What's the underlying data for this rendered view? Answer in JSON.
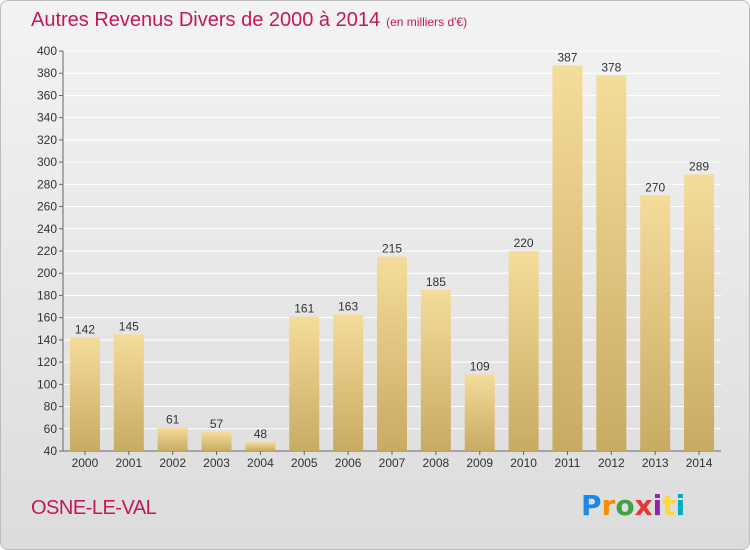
{
  "header": {
    "title": "Autres Revenus Divers de 2000 à 2014",
    "unit": "(en milliers d'€)"
  },
  "footer": {
    "commune": "OSNE-LE-VAL",
    "logo_letters": [
      "P",
      "r",
      "o",
      "x",
      "i",
      "t",
      "i"
    ],
    "logo_colors": [
      "#1e88e5",
      "#fb8c00",
      "#43a047",
      "#e53935",
      "#8e24aa",
      "#fdd835",
      "#00acc1"
    ]
  },
  "chart_data": {
    "type": "bar",
    "title": "Autres Revenus Divers de 2000 à 2014",
    "categories": [
      "2000",
      "2001",
      "2002",
      "2003",
      "2004",
      "2005",
      "2006",
      "2007",
      "2008",
      "2009",
      "2010",
      "2011",
      "2012",
      "2013",
      "2014"
    ],
    "values": [
      142,
      145,
      61,
      57,
      48,
      161,
      163,
      215,
      185,
      109,
      220,
      387,
      378,
      270,
      289
    ],
    "ylim": [
      40,
      400
    ],
    "yticks": [
      40,
      60,
      80,
      100,
      120,
      140,
      160,
      180,
      200,
      220,
      240,
      260,
      280,
      300,
      320,
      340,
      360,
      380,
      400
    ],
    "grid": true,
    "data_labels": true,
    "colors": {
      "bar_light": "#f5dc9a",
      "bar_dark": "#c8ab63",
      "grid": "#ffffff",
      "axis": "#666666",
      "text": "#333333"
    }
  }
}
